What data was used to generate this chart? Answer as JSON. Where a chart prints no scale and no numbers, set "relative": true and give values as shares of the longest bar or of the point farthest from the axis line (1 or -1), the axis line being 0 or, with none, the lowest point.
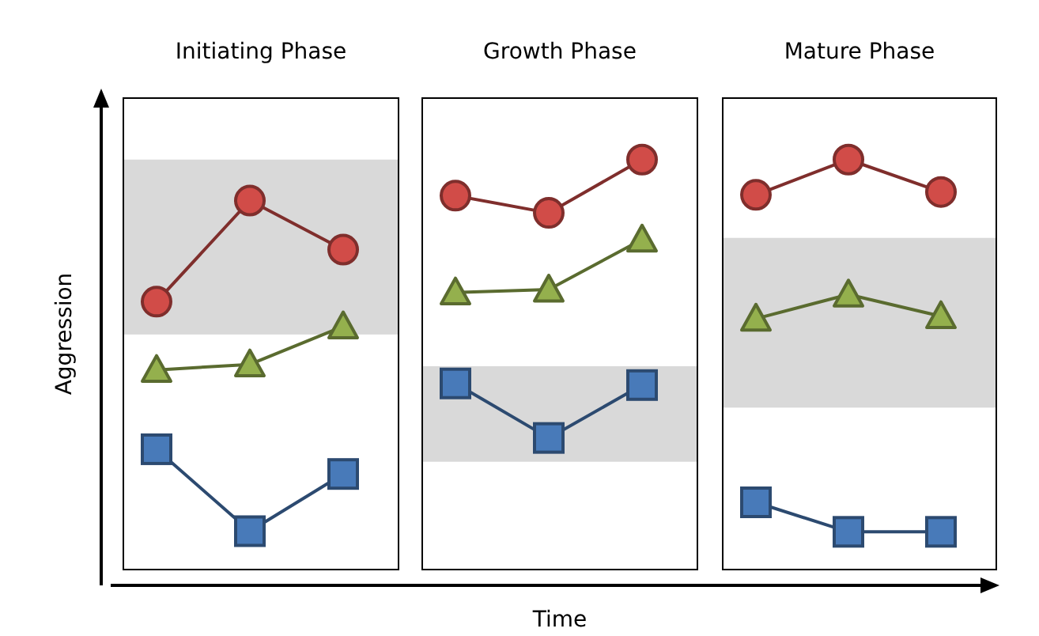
{
  "chart_data": [
    {
      "type": "line",
      "title": "Initiating Phase",
      "ylabel": "Aggression",
      "relative": true,
      "categories": [
        null,
        null,
        null
      ],
      "series": [
        {
          "color": "#7f2e2c",
          "marker": "circle",
          "values": [
            0.726,
            1,
            0.867
          ]
        },
        {
          "color": "#5a6b2f",
          "marker": "triangle",
          "values": [
            0.541,
            0.556,
            0.659
          ]
        },
        {
          "color": "#2c4a70",
          "marker": "square",
          "values": [
            0.326,
            0.104,
            0.259
          ]
        }
      ],
      "bands": [
        {
          "axis": "y",
          "from": 0.637,
          "to": 1.111,
          "color": "#d9d9d9"
        }
      ]
    },
    {
      "type": "line",
      "title": "Growth Phase",
      "xlabel": "Time",
      "relative": true,
      "categories": [
        null,
        null,
        null
      ],
      "series": [
        {
          "color": "#7f2e2c",
          "marker": "circle",
          "values": [
            0.912,
            0.87,
            1
          ]
        },
        {
          "color": "#5a6b2f",
          "marker": "triangle",
          "values": [
            0.676,
            0.683,
            0.805
          ]
        },
        {
          "color": "#2c4a70",
          "marker": "square",
          "values": [
            0.454,
            0.321,
            0.45
          ]
        }
      ],
      "bands": [
        {
          "axis": "y",
          "from": 0.263,
          "to": 0.496,
          "color": "#d9d9d9"
        }
      ]
    },
    {
      "type": "line",
      "title": "Mature Phase",
      "relative": true,
      "categories": [
        null,
        null,
        null
      ],
      "series": [
        {
          "color": "#7f2e2c",
          "marker": "circle",
          "values": [
            0.914,
            1,
            0.921
          ]
        },
        {
          "color": "#5a6b2f",
          "marker": "triangle",
          "values": [
            0.612,
            0.671,
            0.618
          ]
        },
        {
          "color": "#2c4a70",
          "marker": "square",
          "values": [
            0.164,
            0.092,
            0.092
          ]
        }
      ],
      "bands": [
        {
          "axis": "y",
          "from": 0.395,
          "to": 0.809,
          "color": "#d9d9d9"
        }
      ]
    }
  ]
}
